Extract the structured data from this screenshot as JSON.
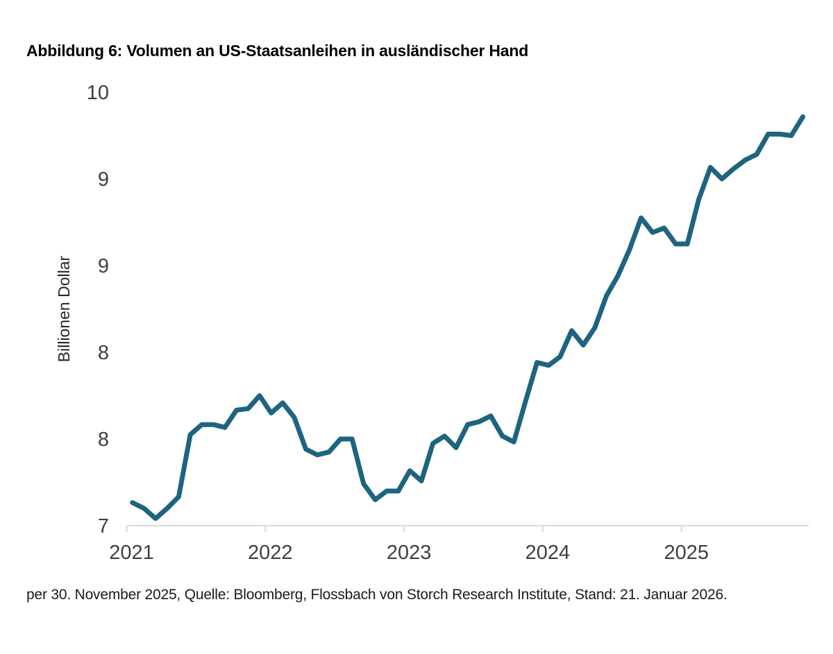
{
  "figure": {
    "title": "Abbildung 6: Volumen an US-Staatsanleihen in ausländischer Hand",
    "source_note": "per 30. November 2025, Quelle: Bloomberg, Flossbach von Storch Research Institute, Stand: 21. Januar 2026."
  },
  "chart_data": {
    "type": "line",
    "title": "Abbildung 6: Volumen an US-Staatsanleihen in ausländischer Hand",
    "series_name": "Volumen an US-Staatsanleihen in ausländischer Hand",
    "xlabel": "",
    "ylabel": "Billionen Dollar",
    "ylim": [
      7,
      10
    ],
    "grid": false,
    "legend_position": "none",
    "line_color": "#1e6480",
    "axis_color": "#d9d9d9",
    "x": [
      "2021-01",
      "2021-02",
      "2021-03",
      "2021-04",
      "2021-05",
      "2021-06",
      "2021-07",
      "2021-08",
      "2021-09",
      "2021-10",
      "2021-11",
      "2021-12",
      "2022-01",
      "2022-02",
      "2022-03",
      "2022-04",
      "2022-05",
      "2022-06",
      "2022-07",
      "2022-08",
      "2022-09",
      "2022-10",
      "2022-11",
      "2022-12",
      "2023-01",
      "2023-02",
      "2023-03",
      "2023-04",
      "2023-05",
      "2023-06",
      "2023-07",
      "2023-08",
      "2023-09",
      "2023-10",
      "2023-11",
      "2023-12",
      "2024-01",
      "2024-02",
      "2024-03",
      "2024-04",
      "2024-05",
      "2024-06",
      "2024-07",
      "2024-08",
      "2024-09",
      "2024-10",
      "2024-11",
      "2024-12",
      "2025-01",
      "2025-02",
      "2025-03",
      "2025-04",
      "2025-05",
      "2025-06",
      "2025-07",
      "2025-08",
      "2025-09",
      "2025-10",
      "2025-11"
    ],
    "values": [
      7.16,
      7.12,
      7.05,
      7.12,
      7.2,
      7.63,
      7.7,
      7.7,
      7.68,
      7.8,
      7.81,
      7.9,
      7.78,
      7.85,
      7.75,
      7.53,
      7.49,
      7.51,
      7.6,
      7.6,
      7.29,
      7.18,
      7.24,
      7.24,
      7.38,
      7.31,
      7.57,
      7.62,
      7.54,
      7.7,
      7.72,
      7.76,
      7.62,
      7.58,
      7.86,
      8.13,
      8.11,
      8.17,
      8.35,
      8.25,
      8.37,
      8.59,
      8.73,
      8.91,
      9.13,
      9.03,
      9.06,
      8.95,
      8.95,
      9.26,
      9.48,
      9.4,
      9.47,
      9.53,
      9.57,
      9.71,
      9.71,
      9.7,
      9.83
    ],
    "yticks": [
      {
        "value": 10.0,
        "label": "10"
      },
      {
        "value": 9.4,
        "label": "9"
      },
      {
        "value": 8.8,
        "label": "9"
      },
      {
        "value": 8.2,
        "label": "8"
      },
      {
        "value": 7.6,
        "label": "8"
      },
      {
        "value": 7.0,
        "label": "7"
      }
    ],
    "xticks": [
      {
        "month_index": 0,
        "label": "2021"
      },
      {
        "month_index": 12,
        "label": "2022"
      },
      {
        "month_index": 24,
        "label": "2023"
      },
      {
        "month_index": 36,
        "label": "2024"
      },
      {
        "month_index": 48,
        "label": "2025"
      }
    ]
  }
}
